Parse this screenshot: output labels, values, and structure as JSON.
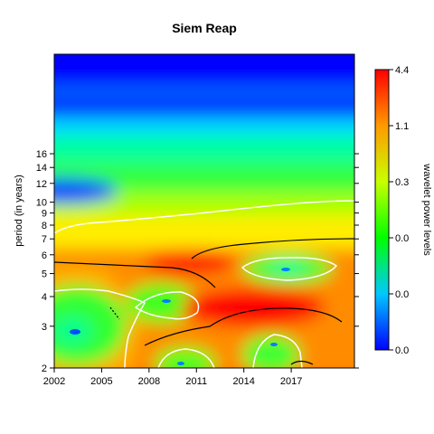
{
  "chart_data": {
    "type": "heatmap",
    "title": "Siem Reap",
    "xlabel": "",
    "ylabel": "period (in years)",
    "x_ticks": [
      "2002",
      "2005",
      "2008",
      "2011",
      "2014",
      "2017"
    ],
    "x_tick_values": [
      2002,
      2005,
      2008,
      2011,
      2014,
      2017
    ],
    "xlim": [
      2002,
      2021
    ],
    "y_scale": "log2",
    "y_ticks": [
      "2",
      "3",
      "4",
      "5",
      "6",
      "7",
      "8",
      "9",
      "10",
      "12",
      "14",
      "16"
    ],
    "y_tick_values": [
      2,
      3,
      4,
      5,
      6,
      7,
      8,
      9,
      10,
      12,
      14,
      16
    ],
    "ylim": [
      2,
      42
    ],
    "colorbar": {
      "label": "wavelet power levels",
      "tick_labels": [
        "0.0",
        "0.0",
        "0.0",
        "0.3",
        "1.1",
        "4.4"
      ],
      "colors": [
        "#0000ff",
        "#00ffff",
        "#00ff00",
        "#ffff00",
        "#ff7f00",
        "#ff0000"
      ]
    },
    "colors": {
      "contour_significance": "#ffffff",
      "ridge_lines": "#000000"
    }
  }
}
